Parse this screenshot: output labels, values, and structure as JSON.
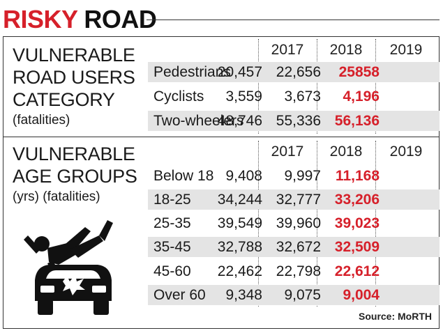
{
  "header": {
    "title_red": "RISKY",
    "title_black": "ROAD"
  },
  "sections": [
    {
      "label_lines": [
        "VULNERABLE",
        "ROAD USERS",
        "CATEGORY"
      ],
      "sublabel": "(fatalities)",
      "years": [
        "2017",
        "2018",
        "2019"
      ],
      "rows": [
        {
          "category": "Pedestrians",
          "values": [
            "20,457",
            "22,656",
            "25858"
          ]
        },
        {
          "category": "Cyclists",
          "values": [
            "3,559",
            "3,673",
            "4,196"
          ]
        },
        {
          "category": "Two-wheelers",
          "values": [
            "48,746",
            "55,336",
            "56,136"
          ]
        }
      ]
    },
    {
      "label_lines": [
        "VULNERABLE",
        "AGE GROUPS"
      ],
      "sublabel": "(yrs) (fatalities)",
      "years": [
        "2017",
        "2018",
        "2019"
      ],
      "rows": [
        {
          "category": "Below 18",
          "values": [
            "9,408",
            "9,997",
            "11,168"
          ]
        },
        {
          "category": "18-25",
          "values": [
            "34,244",
            "32,777",
            "33,206"
          ]
        },
        {
          "category": "25-35",
          "values": [
            "39,549",
            "39,960",
            "39,023"
          ]
        },
        {
          "category": "35-45",
          "values": [
            "32,788",
            "32,672",
            "32,509"
          ]
        },
        {
          "category": "45-60",
          "values": [
            "22,462",
            "22,798",
            "22,612"
          ]
        },
        {
          "category": "Over 60",
          "values": [
            "9,348",
            "9,075",
            "9,004"
          ]
        }
      ]
    }
  ],
  "source": "Source: MoRTH",
  "chart_data": [
    {
      "type": "table",
      "title": "RISKY ROAD",
      "subtitle": "VULNERABLE ROAD USERS CATEGORY (fatalities)",
      "columns": [
        "2017",
        "2018",
        "2019"
      ],
      "categories": [
        "Pedestrians",
        "Cyclists",
        "Two-wheelers"
      ],
      "series": [
        {
          "name": "2017",
          "values": [
            20457,
            3559,
            48746
          ]
        },
        {
          "name": "2018",
          "values": [
            22656,
            3673,
            55336
          ]
        },
        {
          "name": "2019",
          "values": [
            25858,
            4196,
            56136
          ]
        }
      ]
    },
    {
      "type": "table",
      "subtitle": "VULNERABLE AGE GROUPS (yrs) (fatalities)",
      "columns": [
        "2017",
        "2018",
        "2019"
      ],
      "categories": [
        "Below 18",
        "18-25",
        "25-35",
        "35-45",
        "45-60",
        "Over 60"
      ],
      "series": [
        {
          "name": "2017",
          "values": [
            9408,
            34244,
            39549,
            32788,
            22462,
            9348
          ]
        },
        {
          "name": "2018",
          "values": [
            9997,
            32777,
            39960,
            32672,
            22798,
            9075
          ]
        },
        {
          "name": "2019",
          "values": [
            11168,
            33206,
            39023,
            32509,
            22612,
            9004
          ]
        }
      ]
    }
  ],
  "accent_color": "#d6202a",
  "icon": "pedestrian-hit-by-car-icon"
}
